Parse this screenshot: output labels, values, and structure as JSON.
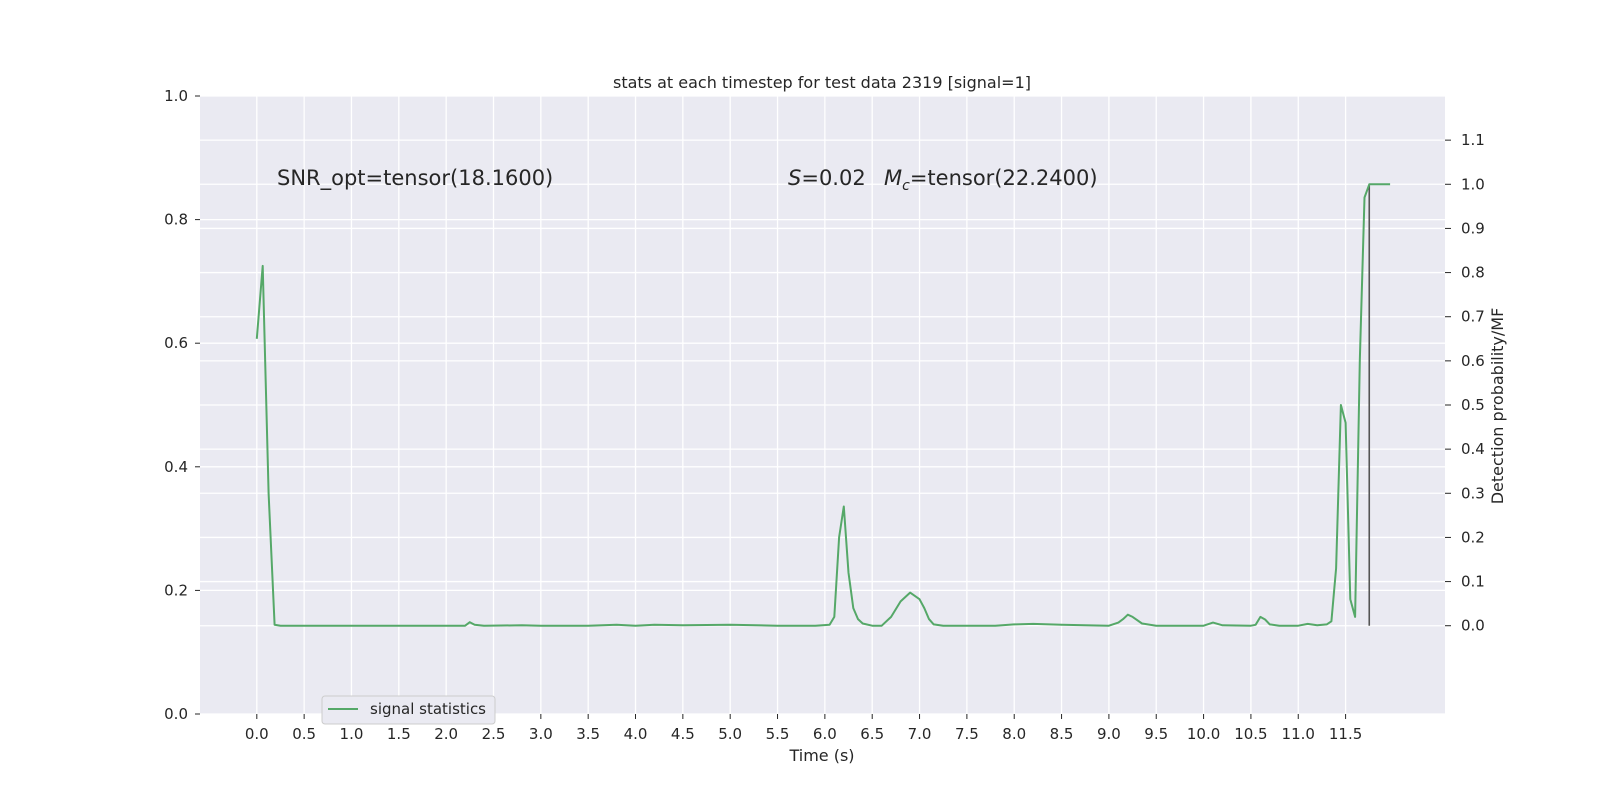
{
  "chart_data": {
    "type": "line",
    "title": "stats at each timestep for test data 2319 [signal=1]",
    "xlabel": "Time (s)",
    "ylabel": "",
    "ylabel_right": "Detection probability/MF",
    "xlim": [
      -0.6,
      12.55
    ],
    "ylim": [
      0,
      1
    ],
    "ylim_right": [
      -0.2,
      1.2
    ],
    "x_ticks": [
      "0.0",
      "0.5",
      "1.0",
      "1.5",
      "2.0",
      "2.5",
      "3.0",
      "3.5",
      "4.0",
      "4.5",
      "5.0",
      "5.5",
      "6.0",
      "6.5",
      "7.0",
      "7.5",
      "8.0",
      "8.5",
      "9.0",
      "9.5",
      "10.0",
      "10.5",
      "11.0",
      "11.5"
    ],
    "y_ticks": [
      "0.0",
      "0.2",
      "0.4",
      "0.6",
      "0.8",
      "1.0"
    ],
    "y_ticks_right": [
      "0.0",
      "0.1",
      "0.2",
      "0.3",
      "0.4",
      "0.5",
      "0.6",
      "0.7",
      "0.8",
      "0.9",
      "1.0",
      "1.1"
    ],
    "grid": true,
    "legend_placement": "lower-left",
    "annotations": {
      "snr": "SNR_opt=tensor(18.1600)",
      "s": "S=0.02",
      "mc": "Mc=tensor(22.2400)"
    },
    "vertical_marker": {
      "x": 11.75,
      "y_right": [
        0,
        1.0
      ]
    },
    "series": [
      {
        "name": "signal statistics",
        "color": "#55a868",
        "axis": "right",
        "x": [
          0.0,
          0.0625,
          0.125,
          0.1875,
          0.25,
          0.5,
          1.0,
          1.5,
          2.0,
          2.2,
          2.25,
          2.3,
          2.4,
          2.8,
          3.0,
          3.5,
          3.8,
          3.9,
          4.0,
          4.2,
          4.5,
          5.0,
          5.5,
          5.9,
          6.05,
          6.1,
          6.15,
          6.2,
          6.25,
          6.3,
          6.35,
          6.4,
          6.5,
          6.6,
          6.7,
          6.8,
          6.9,
          7.0,
          7.05,
          7.1,
          7.15,
          7.25,
          7.35,
          7.5,
          7.8,
          8.0,
          8.2,
          8.5,
          9.0,
          9.1,
          9.15,
          9.2,
          9.25,
          9.35,
          9.5,
          10.0,
          10.1,
          10.2,
          10.5,
          10.55,
          10.6,
          10.65,
          10.7,
          10.8,
          11.0,
          11.1,
          11.2,
          11.3,
          11.35,
          11.4,
          11.45,
          11.5,
          11.55,
          11.6,
          11.65,
          11.7,
          11.75,
          11.82,
          11.9,
          11.97
        ],
        "values": [
          0.65,
          0.815,
          0.3,
          0.002,
          0.0,
          0.0,
          0.0,
          0.0,
          0.0,
          0.0,
          0.008,
          0.002,
          0.0,
          0.001,
          0.0,
          0.0,
          0.002,
          0.001,
          0.0,
          0.002,
          0.001,
          0.002,
          0.0,
          0.0,
          0.002,
          0.02,
          0.2,
          0.27,
          0.12,
          0.04,
          0.015,
          0.005,
          0.0,
          0.0,
          0.02,
          0.055,
          0.075,
          0.06,
          0.04,
          0.015,
          0.003,
          0.0,
          0.0,
          0.0,
          0.0,
          0.003,
          0.004,
          0.002,
          0.0,
          0.007,
          0.015,
          0.025,
          0.02,
          0.005,
          0.0,
          0.0,
          0.007,
          0.001,
          0.0,
          0.002,
          0.02,
          0.014,
          0.003,
          0.0,
          0.0,
          0.004,
          0.001,
          0.003,
          0.01,
          0.13,
          0.5,
          0.46,
          0.06,
          0.02,
          0.6,
          0.97,
          1.0,
          1.0,
          1.0,
          1.0
        ]
      }
    ]
  }
}
